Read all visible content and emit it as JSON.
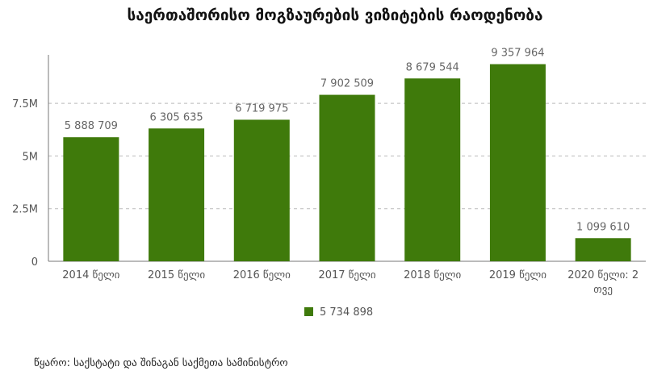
{
  "title": "საერთაშორისო მოგზაურების ვიზიტების რაოდენობა",
  "source": "წყარო: საქსტატი და შინაგან საქმეთა სამინისტრო",
  "chart_data": {
    "type": "bar",
    "title": "საერთაშორისო მოგზაურების ვიზიტების რაოდენობა",
    "categories": [
      "2014 წელი",
      "2015 წელი",
      "2016 წელი",
      "2017 წელი",
      "2018 წელი",
      "2019 წელი",
      "2020 წელი: 2 თვე"
    ],
    "series": [
      {
        "name": "5 734 898",
        "values": [
          5888709,
          6305635,
          6719975,
          7902509,
          8679544,
          9357964,
          1099610
        ],
        "labels": [
          "5 888 709",
          "6 305 635",
          "6 719 975",
          "7 902 509",
          "8 679 544",
          "9 357 964",
          "1 099 610"
        ],
        "color": "#3f7a0b"
      }
    ],
    "ylim": [
      0,
      9800000
    ],
    "yticks": [
      0,
      2500000,
      5000000,
      7500000
    ],
    "ytick_labels": [
      "0",
      "2.5M",
      "5M",
      "7.5M"
    ],
    "grid": true,
    "legend_position": "bottom",
    "xlabel": "",
    "ylabel": ""
  }
}
